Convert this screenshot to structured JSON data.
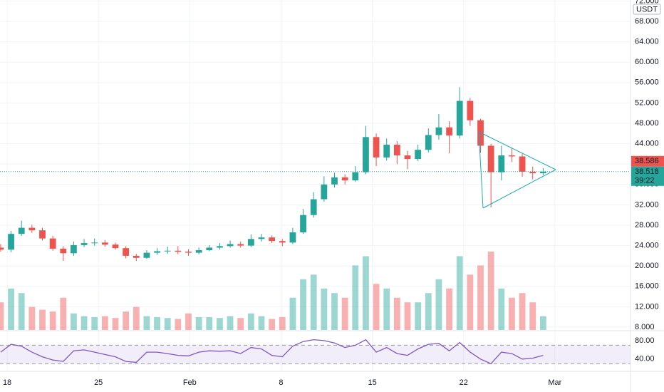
{
  "chart_data": {
    "type": "candlestick",
    "currency": "USDT",
    "x": [
      -0.5,
      0.3,
      1.1,
      1.9,
      2.7,
      3.5,
      4.3,
      5.1,
      5.9,
      6.7,
      7.5,
      8.3,
      9.1,
      9.9,
      10.7,
      11.5,
      12.3,
      13.1,
      13.9,
      14.7,
      15.5,
      16.3,
      17.1,
      17.9,
      18.7,
      19.5,
      20.3,
      21.1,
      21.9,
      22.7,
      23.5,
      24.3,
      25.1,
      25.9,
      26.7,
      27.5,
      28.3,
      29.1,
      29.9,
      30.7,
      31.5,
      32.3,
      33.1,
      33.9,
      34.7,
      35.5,
      36.3,
      37.1,
      37.9,
      38.7,
      39.5,
      40.3,
      41.1
    ],
    "open": [
      23.6,
      23.2,
      26.3,
      27.5,
      27.0,
      25.4,
      23.4,
      22.5,
      24.1,
      24.5,
      24.6,
      24.2,
      23.5,
      22.0,
      21.6,
      22.6,
      22.9,
      23.0,
      22.8,
      22.6,
      23.1,
      23.6,
      23.9,
      24.3,
      24.0,
      25.3,
      25.6,
      24.9,
      24.6,
      26.6,
      30.0,
      33.1,
      36.0,
      37.4,
      36.8,
      38.4,
      45.3,
      41.3,
      43.8,
      41.7,
      41.0,
      42.8,
      45.7,
      47.2,
      45.6,
      52.4,
      48.6,
      43.6,
      38.4,
      41.7,
      41.5,
      38.5,
      38.2
    ],
    "high": [
      24.3,
      26.9,
      28.9,
      28.1,
      27.5,
      25.9,
      23.9,
      24.8,
      25.3,
      25.4,
      25.1,
      24.6,
      23.9,
      22.4,
      23.1,
      23.5,
      23.8,
      23.9,
      23.3,
      23.6,
      24.1,
      24.5,
      25.0,
      24.8,
      26.2,
      26.3,
      26.0,
      25.3,
      27.5,
      31.2,
      34.5,
      37.6,
      38.3,
      38.0,
      39.6,
      47.5,
      46.0,
      45.0,
      44.5,
      42.6,
      43.8,
      47.0,
      49.8,
      48.4,
      55.1,
      53.0,
      48.9,
      44.0,
      43.6,
      43.2,
      42.0,
      39.5,
      39.2
    ],
    "low": [
      22.8,
      22.7,
      25.9,
      26.5,
      25.0,
      23.0,
      21.0,
      22.0,
      23.7,
      24.0,
      23.8,
      23.2,
      21.5,
      21.0,
      21.4,
      22.2,
      22.4,
      22.3,
      22.0,
      22.3,
      22.9,
      23.2,
      23.6,
      23.6,
      23.7,
      24.8,
      24.5,
      23.9,
      24.3,
      26.3,
      29.5,
      32.6,
      35.4,
      36.0,
      36.5,
      38.0,
      39.6,
      40.7,
      40.0,
      39.0,
      40.6,
      42.3,
      44.8,
      42.1,
      45.0,
      47.5,
      42.2,
      31.5,
      36.8,
      40.4,
      37.5,
      37.0,
      37.8
    ],
    "close": [
      23.2,
      26.3,
      27.5,
      27.0,
      25.4,
      23.4,
      22.5,
      24.1,
      24.5,
      24.6,
      24.2,
      23.5,
      22.0,
      21.6,
      22.6,
      22.9,
      23.0,
      22.8,
      22.6,
      23.1,
      23.6,
      23.9,
      24.3,
      24.0,
      25.3,
      25.6,
      24.9,
      24.6,
      26.6,
      30.0,
      33.1,
      36.0,
      37.4,
      36.8,
      38.4,
      45.3,
      41.3,
      43.8,
      41.7,
      41.0,
      42.8,
      45.7,
      47.2,
      45.6,
      52.4,
      48.6,
      43.6,
      38.4,
      41.7,
      41.5,
      38.5,
      38.2,
      38.518
    ],
    "volume": [
      30,
      45,
      40,
      25,
      22,
      20,
      35,
      18,
      15,
      14,
      15,
      13,
      20,
      25,
      15,
      14,
      13,
      12,
      18,
      14,
      14,
      13,
      15,
      13,
      18,
      15,
      12,
      14,
      35,
      55,
      60,
      45,
      40,
      35,
      70,
      80,
      50,
      45,
      35,
      30,
      30,
      40,
      55,
      45,
      80,
      60,
      70,
      85,
      45,
      35,
      40,
      30,
      15
    ],
    "rsi": [
      55,
      72,
      68,
      55,
      45,
      38,
      35,
      58,
      60,
      55,
      50,
      45,
      35,
      33,
      55,
      55,
      52,
      48,
      47,
      55,
      58,
      57,
      58,
      52,
      65,
      62,
      48,
      45,
      68,
      78,
      82,
      80,
      75,
      65,
      70,
      82,
      55,
      65,
      52,
      48,
      62,
      72,
      74,
      58,
      76,
      55,
      40,
      30,
      55,
      52,
      40,
      42,
      48
    ],
    "up_color": "#26a69a",
    "down_color": "#ef5350",
    "rsi_color": "#7e57c2",
    "xlim": [
      -0.55,
      47.8
    ],
    "xticks": [
      {
        "value": 0,
        "label": "18"
      },
      {
        "value": 7,
        "label": "25"
      },
      {
        "value": 14,
        "label": "Feb"
      },
      {
        "value": 21,
        "label": "8"
      },
      {
        "value": 28,
        "label": "15"
      },
      {
        "value": 35,
        "label": "22"
      },
      {
        "value": 42,
        "label": "Mar"
      }
    ],
    "ylim": [
      7.44,
      72.2
    ],
    "yticks": [
      {
        "value": 8,
        "label": "8.000"
      },
      {
        "value": 12,
        "label": "12.000"
      },
      {
        "value": 16,
        "label": "16.000"
      },
      {
        "value": 20,
        "label": "20.000"
      },
      {
        "value": 24,
        "label": "24.000"
      },
      {
        "value": 28,
        "label": "28.000"
      },
      {
        "value": 32,
        "label": "32.000"
      },
      {
        "value": 36,
        "label": "36.000"
      },
      {
        "value": 40,
        "label": "40.000"
      },
      {
        "value": 44,
        "label": "44.000"
      },
      {
        "value": 48,
        "label": "48.000"
      },
      {
        "value": 52,
        "label": "52.000"
      },
      {
        "value": 56,
        "label": "56.000"
      },
      {
        "value": 60,
        "label": "60.000"
      },
      {
        "value": 64,
        "label": "64.000"
      },
      {
        "value": 68,
        "label": "68.000"
      },
      {
        "value": 72,
        "label": "72.000"
      }
    ],
    "rsi_ylim": [
      15,
      100
    ],
    "rsi_yticks": [
      {
        "value": 40,
        "label": "40.00"
      },
      {
        "value": 80,
        "label": "80.00"
      }
    ],
    "rsi_band": [
      30,
      70
    ],
    "last_price": {
      "value": 38.518,
      "label": "38.518"
    },
    "countdown": "39:22",
    "mark_price": {
      "value": 38.586,
      "label": "38.586"
    },
    "grid": true
  }
}
